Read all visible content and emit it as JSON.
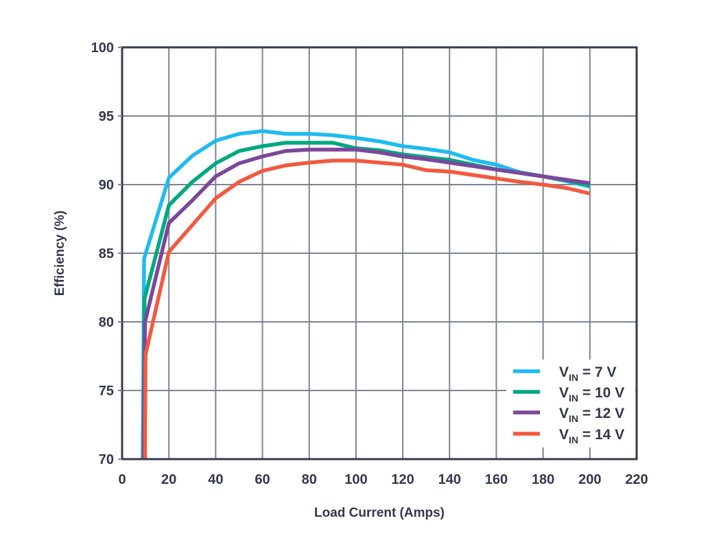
{
  "chart_data": {
    "type": "line",
    "title": "",
    "xlabel": "Load Current (Amps)",
    "ylabel": "Efficiency (%)",
    "xlim": [
      0,
      220
    ],
    "ylim": [
      70,
      100
    ],
    "xticks": [
      0,
      20,
      40,
      60,
      80,
      100,
      120,
      140,
      160,
      180,
      200,
      220
    ],
    "yticks": [
      70,
      75,
      80,
      85,
      90,
      95,
      100
    ],
    "xtick_labels": [
      "0",
      "20",
      "40",
      "60",
      "80",
      "100",
      "120",
      "140",
      "160",
      "180",
      "200",
      "220"
    ],
    "ytick_labels": [
      "70",
      "75",
      "80",
      "85",
      "90",
      "95",
      "100"
    ],
    "grid": true,
    "legend_position": "bottom-right",
    "series": [
      {
        "name": "VIN = 7 V",
        "legend_main": "V",
        "legend_sub": "IN",
        "legend_rest": " = 7 V",
        "color": "#1ebcef",
        "x": [
          8.8,
          9.4,
          20,
          30,
          40,
          50,
          60,
          70,
          80,
          90,
          100,
          110,
          120,
          130,
          140,
          150,
          160,
          170,
          180,
          190,
          200
        ],
        "y": [
          70,
          84.6,
          90.5,
          92.1,
          93.2,
          93.7,
          93.9,
          93.7,
          93.7,
          93.6,
          93.4,
          93.15,
          92.8,
          92.6,
          92.35,
          91.8,
          91.45,
          90.9,
          90.6,
          90.25,
          89.85
        ]
      },
      {
        "name": "VIN = 10 V",
        "legend_main": "V",
        "legend_sub": "IN",
        "legend_rest": " = 10 V",
        "color": "#00a97f",
        "x": [
          9.0,
          9.6,
          20,
          30,
          40,
          50,
          60,
          70,
          80,
          90,
          100,
          110,
          120,
          130,
          140,
          150,
          160,
          170,
          180,
          190,
          200
        ],
        "y": [
          70,
          81.7,
          88.5,
          90.2,
          91.55,
          92.45,
          92.8,
          93.05,
          93.05,
          93.05,
          92.65,
          92.5,
          92.2,
          92.0,
          91.8,
          91.45,
          91.1,
          90.85,
          90.6,
          90.3,
          89.95
        ]
      },
      {
        "name": "VIN = 12 V",
        "legend_main": "V",
        "legend_sub": "IN",
        "legend_rest": " = 12 V",
        "color": "#7b479c",
        "x": [
          9.2,
          9.8,
          20,
          30,
          40,
          50,
          60,
          70,
          80,
          90,
          100,
          110,
          120,
          130,
          140,
          150,
          160,
          170,
          180,
          190,
          200
        ],
        "y": [
          70,
          80.0,
          87.2,
          88.85,
          90.6,
          91.55,
          92.05,
          92.45,
          92.55,
          92.55,
          92.55,
          92.35,
          92.05,
          91.85,
          91.6,
          91.35,
          91.1,
          90.85,
          90.6,
          90.35,
          90.1
        ]
      },
      {
        "name": "VIN = 14 V",
        "legend_main": "V",
        "legend_sub": "IN",
        "legend_rest": " = 14 V",
        "color": "#f15a3f",
        "x": [
          9.8,
          10.0,
          20,
          30,
          40,
          50,
          60,
          70,
          80,
          90,
          100,
          110,
          120,
          130,
          140,
          150,
          160,
          170,
          180,
          190,
          200
        ],
        "y": [
          70,
          77.6,
          85.1,
          87.05,
          89.0,
          90.2,
          91.0,
          91.4,
          91.6,
          91.75,
          91.75,
          91.6,
          91.45,
          91.05,
          90.95,
          90.7,
          90.45,
          90.2,
          90.0,
          89.75,
          89.35
        ]
      }
    ]
  },
  "colors": {
    "axis": "#343a4d",
    "grid": "#7d8395",
    "text": "#33384a"
  }
}
